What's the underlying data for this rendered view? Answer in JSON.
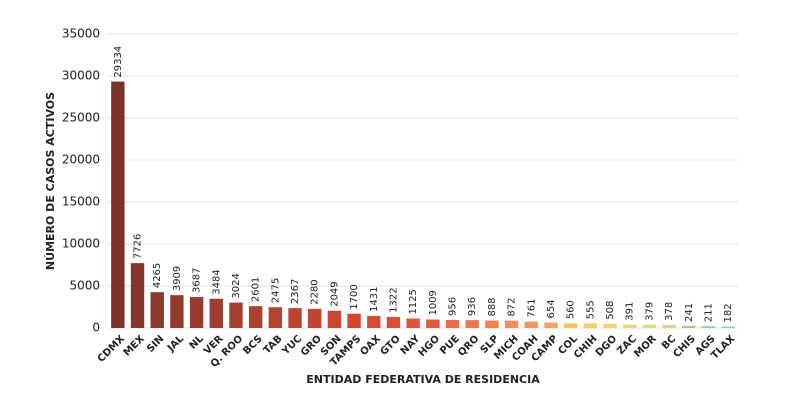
{
  "chart_data": {
    "type": "bar",
    "x_label": "ENTIDAD FEDERATIVA DE RESIDENCIA",
    "y_label": "NÚMERO DE CASOS ACTIVOS",
    "categories": [
      "CDMX",
      "MEX",
      "SIN",
      "JAL",
      "NL",
      "VER",
      "Q. ROO",
      "BCS",
      "TAB",
      "YUC",
      "GRO",
      "SON",
      "TAMPS",
      "OAX",
      "GTO",
      "NAY",
      "HGO",
      "PUE",
      "QRO",
      "SLP",
      "MICH",
      "COAH",
      "CAMP",
      "COL",
      "CHIH",
      "DGO",
      "ZAC",
      "MOR",
      "BC",
      "CHIS",
      "AGS",
      "TLAX"
    ],
    "values": [
      29334,
      7726,
      4265,
      3909,
      3687,
      3484,
      3024,
      2601,
      2475,
      2367,
      2280,
      2049,
      1700,
      1431,
      1322,
      1125,
      1009,
      956,
      936,
      888,
      872,
      761,
      654,
      560,
      555,
      508,
      391,
      379,
      378,
      241,
      211,
      182
    ],
    "colors": [
      "#7b3328",
      "#853729",
      "#8b392c",
      "#913b2d",
      "#963c2e",
      "#9c3e2f",
      "#a3402f",
      "#ab412f",
      "#b34230",
      "#bb4330",
      "#c24530",
      "#c94631",
      "#cf4933",
      "#d54c35",
      "#da4f36",
      "#df5338",
      "#e25a3a",
      "#e76c47",
      "#ea784e",
      "#ed8455",
      "#ef8e5c",
      "#f1985f",
      "#f2a462",
      "#f4c06a",
      "#f5cb72",
      "#f3d37a",
      "#ead689",
      "#e0d690",
      "#d8d38f",
      "#9ecf8a",
      "#8fcfa8",
      "#8ec9d6"
    ],
    "ylim": [
      0,
      35000
    ],
    "yticks": [
      0,
      5000,
      10000,
      15000,
      20000,
      25000,
      30000,
      35000
    ],
    "grid": true
  }
}
